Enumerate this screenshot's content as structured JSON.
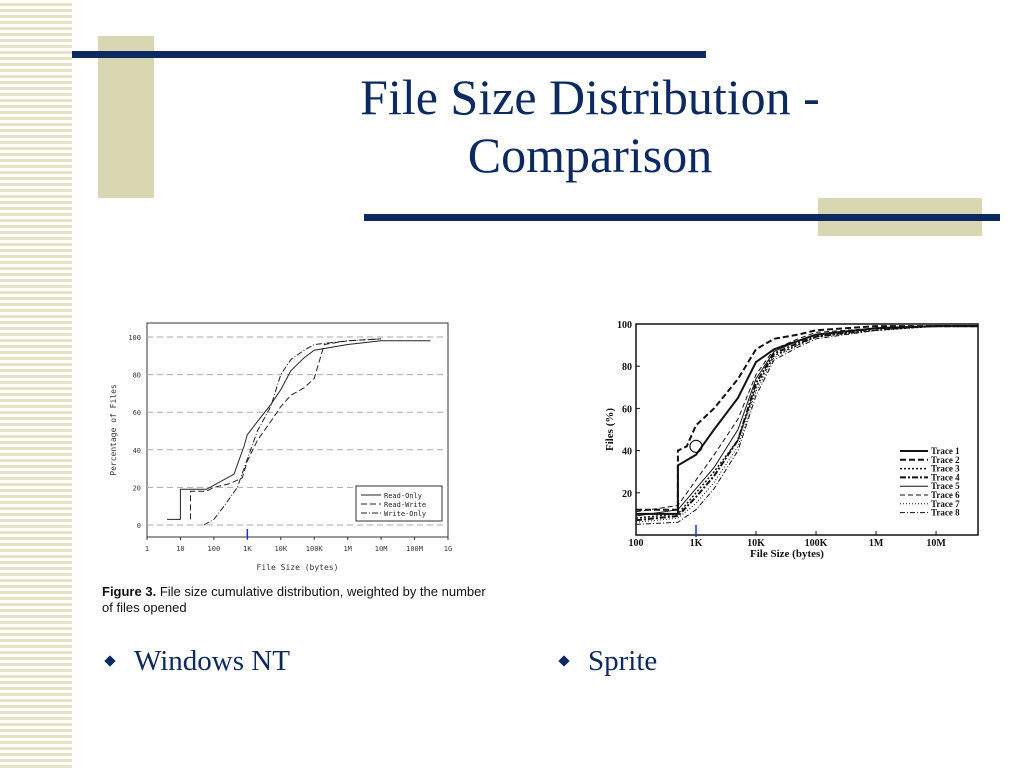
{
  "slide": {
    "title_line1": "File Size Distribution -",
    "title_line2": "Comparison",
    "caption_label": "Figure 3.",
    "caption_text": "File size cumulative distribution, weighted by the number of files opened",
    "bullets": [
      "Windows NT",
      "Sprite"
    ],
    "colors": {
      "title": "#0c2a60",
      "accent_block": "#d9d7b1",
      "stripe": "#e5e3c5"
    }
  },
  "chart_data": [
    {
      "type": "line",
      "xlabel": "File Size (bytes)",
      "ylabel": "Percentage of Files",
      "x_scale": "log",
      "xlim": [
        1,
        1000000000
      ],
      "ylim": [
        0,
        100
      ],
      "x_ticks": [
        "1",
        "10",
        "100",
        "1K",
        "10K",
        "100K",
        "1M",
        "10M",
        "100M",
        "1G"
      ],
      "y_ticks": [
        "0",
        "20",
        "40",
        "60",
        "80",
        "100"
      ],
      "grid": "horizontal dashed",
      "legend": "bottom-right",
      "series": [
        {
          "name": "Read-Only",
          "style": "solid",
          "x": [
            4,
            10,
            10,
            60,
            400,
            800,
            1000,
            2000,
            5000,
            10000,
            20000,
            50000,
            100000,
            1000000,
            10000000,
            100000000,
            300000000
          ],
          "y": [
            3,
            3,
            19,
            19,
            27,
            42,
            48,
            55,
            64,
            72,
            82,
            89,
            93,
            96,
            98,
            98,
            98
          ]
        },
        {
          "name": "Read-Write",
          "style": "dashed",
          "x": [
            20,
            20,
            60,
            100,
            300,
            700,
            1000,
            2000,
            5000,
            10000,
            20000,
            50000,
            100000,
            200000,
            1000000,
            10000000
          ],
          "y": [
            3,
            18,
            18,
            20,
            22,
            25,
            34,
            45,
            55,
            63,
            69,
            73,
            78,
            96,
            98,
            99
          ]
        },
        {
          "name": "Write-Only",
          "style": "dash-dot",
          "x": [
            50,
            100,
            200,
            500,
            1000,
            2000,
            5000,
            10000,
            20000,
            50000,
            100000,
            1000000,
            10000000
          ],
          "y": [
            0,
            3,
            10,
            20,
            35,
            50,
            63,
            80,
            88,
            93,
            96,
            98,
            99
          ]
        }
      ]
    },
    {
      "type": "line",
      "xlabel": "File Size (bytes)",
      "ylabel": "Files (%)",
      "x_scale": "log",
      "xlim": [
        100,
        50000000
      ],
      "ylim": [
        0,
        100
      ],
      "x_ticks": [
        "100",
        "1K",
        "10K",
        "100K",
        "1M",
        "10M"
      ],
      "y_ticks": [
        "20",
        "40",
        "60",
        "80",
        "100"
      ],
      "legend": "bottom-right",
      "series": [
        {
          "name": "Trace 1",
          "style": "solid-thick",
          "x": [
            100,
            500,
            500,
            1000,
            2000,
            5000,
            10000,
            20000,
            50000,
            100000,
            1000000,
            10000000,
            50000000
          ],
          "y": [
            10,
            10,
            33,
            38,
            50,
            65,
            82,
            88,
            92,
            95,
            98,
            99,
            99
          ]
        },
        {
          "name": "Trace 2",
          "style": "dashed-thick",
          "x": [
            100,
            500,
            500,
            700,
            1000,
            2000,
            5000,
            10000,
            20000,
            50000,
            100000,
            1000000,
            10000000,
            50000000
          ],
          "y": [
            12,
            12,
            40,
            42,
            52,
            60,
            74,
            88,
            93,
            95,
            97,
            99,
            99,
            99
          ]
        },
        {
          "name": "Trace 3",
          "style": "dotted",
          "x": [
            100,
            500,
            1000,
            2000,
            5000,
            10000,
            20000,
            50000,
            100000,
            1000000,
            10000000,
            50000000
          ],
          "y": [
            8,
            10,
            20,
            30,
            45,
            70,
            85,
            90,
            94,
            97,
            99,
            99
          ]
        },
        {
          "name": "Trace 4",
          "style": "dash-dot-thick",
          "x": [
            100,
            500,
            1000,
            2000,
            5000,
            10000,
            20000,
            50000,
            100000,
            1000000,
            10000000,
            50000000
          ],
          "y": [
            7,
            9,
            18,
            28,
            45,
            72,
            86,
            91,
            94,
            98,
            99,
            99
          ]
        },
        {
          "name": "Trace 5",
          "style": "solid",
          "x": [
            100,
            500,
            1000,
            2000,
            5000,
            10000,
            20000,
            50000,
            100000,
            1000000,
            10000000,
            50000000
          ],
          "y": [
            9,
            12,
            22,
            32,
            50,
            74,
            87,
            92,
            95,
            98,
            99,
            99
          ]
        },
        {
          "name": "Trace 6",
          "style": "dashed",
          "x": [
            100,
            500,
            1000,
            2000,
            5000,
            10000,
            20000,
            50000,
            100000,
            1000000,
            10000000,
            50000000
          ],
          "y": [
            11,
            14,
            26,
            38,
            55,
            76,
            88,
            93,
            96,
            98,
            99,
            99
          ]
        },
        {
          "name": "Trace 7",
          "style": "dotted-thin",
          "x": [
            100,
            500,
            1000,
            2000,
            5000,
            10000,
            20000,
            50000,
            100000,
            1000000,
            10000000,
            50000000
          ],
          "y": [
            6,
            8,
            15,
            25,
            42,
            68,
            84,
            90,
            94,
            97,
            99,
            99
          ]
        },
        {
          "name": "Trace 8",
          "style": "dash-dot",
          "x": [
            100,
            500,
            1000,
            2000,
            5000,
            10000,
            20000,
            50000,
            100000,
            1000000,
            10000000,
            50000000
          ],
          "y": [
            5,
            6,
            12,
            22,
            40,
            66,
            83,
            89,
            93,
            97,
            99,
            99
          ]
        }
      ]
    }
  ]
}
